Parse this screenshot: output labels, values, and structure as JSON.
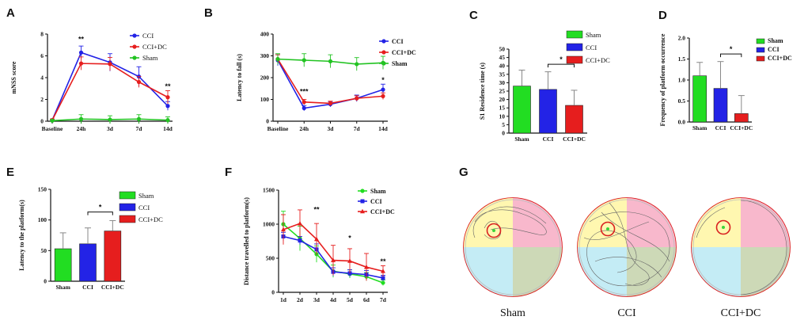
{
  "colors": {
    "cci": "#2323e6",
    "dc": "#e61e1e",
    "sham": "#22c322"
  },
  "panels": {
    "a": "A",
    "b": "B",
    "c": "C",
    "d": "D",
    "e": "E",
    "f": "F",
    "g": "G"
  },
  "chart_data": [
    {
      "id": "A",
      "type": "line",
      "ylabel": "mNSS score",
      "ylim": [
        0,
        8
      ],
      "yticks": [
        0,
        2,
        4,
        6,
        8
      ],
      "categories": [
        "Baseline",
        "24h",
        "3d",
        "7d",
        "14d"
      ],
      "series": [
        {
          "name": "CCI",
          "color": "#2323e6",
          "values": [
            0.1,
            6.3,
            5.4,
            4.1,
            1.4
          ],
          "err": [
            0.1,
            0.6,
            0.8,
            0.9,
            0.4
          ]
        },
        {
          "name": "CCI+DC",
          "color": "#e61e1e",
          "values": [
            0.1,
            5.3,
            5.25,
            3.6,
            2.2
          ],
          "err": [
            0.1,
            0.6,
            0.6,
            0.5,
            0.6
          ]
        },
        {
          "name": "Sham",
          "color": "#22c322",
          "values": [
            0.05,
            0.2,
            0.15,
            0.2,
            0.1
          ],
          "err": [
            0.1,
            0.4,
            0.35,
            0.4,
            0.3
          ]
        }
      ],
      "annotations": [
        {
          "text": "**",
          "index": 1,
          "value": 7.3
        },
        {
          "text": "**",
          "index": 4,
          "value": 3.0
        }
      ]
    },
    {
      "id": "B",
      "type": "line",
      "ylabel": "Latency to fall (s)",
      "ylim": [
        0,
        400
      ],
      "yticks": [
        0,
        100,
        200,
        300,
        400
      ],
      "categories": [
        "Baseline",
        "24h",
        "3d",
        "7d",
        "14d"
      ],
      "series": [
        {
          "name": "CCI",
          "color": "#2323e6",
          "values": [
            280,
            60,
            78,
            105,
            145
          ],
          "err": [
            25,
            12,
            12,
            15,
            25
          ]
        },
        {
          "name": "CCI+DC",
          "color": "#e61e1e",
          "values": [
            285,
            88,
            82,
            105,
            115
          ],
          "err": [
            20,
            12,
            10,
            12,
            15
          ]
        },
        {
          "name": "Sham",
          "color": "#22c322",
          "values": [
            285,
            280,
            275,
            262,
            268
          ],
          "err": [
            25,
            30,
            30,
            30,
            30
          ]
        }
      ],
      "annotations": [
        {
          "text": "***",
          "index": 1,
          "value": 125
        },
        {
          "text": "*",
          "index": 4,
          "value": 178
        }
      ]
    },
    {
      "id": "C",
      "type": "bar",
      "ylabel": "S1 Residence time  (s)",
      "ylim": [
        0,
        50
      ],
      "yticks": [
        0,
        5,
        10,
        15,
        20,
        25,
        30,
        35,
        40,
        45,
        50
      ],
      "categories": [
        "Sham",
        "CCI",
        "CCI+DC"
      ],
      "values": [
        28,
        26,
        16.5
      ],
      "err": [
        9.5,
        10.5,
        9
      ],
      "colors": [
        "#22dd22",
        "#2323e6",
        "#e61e1e"
      ],
      "sig": {
        "text": "*",
        "from": 1,
        "to": 2,
        "value": 41
      }
    },
    {
      "id": "D",
      "type": "bar",
      "ylabel": "Frequency of platform occurrence",
      "ylim": [
        0,
        2.0
      ],
      "yticks": [
        0.0,
        0.5,
        1.0,
        1.5,
        2.0
      ],
      "categories": [
        "Sham",
        "CCI",
        "CCI+DC"
      ],
      "values": [
        1.1,
        0.8,
        0.2
      ],
      "err": [
        0.32,
        0.64,
        0.43
      ],
      "colors": [
        "#22dd22",
        "#2323e6",
        "#e61e1e"
      ],
      "sig": {
        "text": "*",
        "from": 1,
        "to": 2,
        "value": 1.62
      }
    },
    {
      "id": "E",
      "type": "bar",
      "ylabel": "Latency to the platform(s)",
      "ylim": [
        0,
        150
      ],
      "yticks": [
        0,
        50,
        100,
        150
      ],
      "categories": [
        "Sham",
        "CCI",
        "CCI+DC"
      ],
      "values": [
        53,
        61,
        82
      ],
      "err": [
        26,
        26,
        17
      ],
      "colors": [
        "#22dd22",
        "#2323e6",
        "#e61e1e"
      ],
      "sig": {
        "text": "*",
        "from": 1,
        "to": 2,
        "value": 113
      }
    },
    {
      "id": "F",
      "type": "line",
      "ylabel": "Distance travelled to platform(s)",
      "ylim": [
        0,
        1500
      ],
      "yticks": [
        0,
        500,
        1000,
        1500
      ],
      "categories": [
        "1d",
        "2d",
        "3d",
        "4d",
        "5d",
        "6d",
        "7d"
      ],
      "series": [
        {
          "name": "Sham",
          "color": "#22dd22",
          "marker": "circle",
          "values": [
            1000,
            790,
            560,
            310,
            270,
            230,
            140
          ],
          "err": [
            190,
            180,
            120,
            90,
            60,
            60,
            40
          ]
        },
        {
          "name": "CCI",
          "color": "#2323e6",
          "marker": "square",
          "values": [
            820,
            760,
            630,
            300,
            280,
            260,
            210
          ],
          "err": [
            60,
            60,
            80,
            60,
            50,
            60,
            40
          ]
        },
        {
          "name": "CCI+DC",
          "color": "#e61e1e",
          "marker": "triangle",
          "values": [
            920,
            1010,
            780,
            470,
            460,
            370,
            310
          ],
          "err": [
            220,
            200,
            230,
            220,
            180,
            200,
            80
          ]
        }
      ],
      "annotations": [
        {
          "text": "**",
          "index": 2,
          "value": 1180
        },
        {
          "text": "*",
          "index": 4,
          "value": 760
        },
        {
          "text": "**",
          "index": 6,
          "value": 420
        }
      ]
    }
  ],
  "maze": {
    "captions": [
      "Sham",
      "CCI",
      "CCI+DC"
    ]
  }
}
